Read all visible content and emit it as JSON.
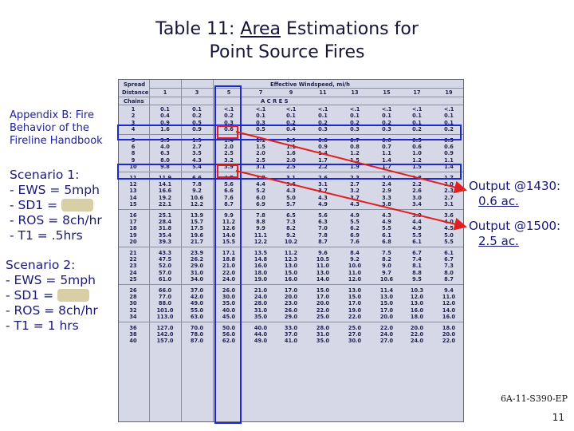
{
  "title": {
    "prefix": "Table 11:  ",
    "underlined": "Area",
    "suffix": " Estimations for",
    "line2": "Point Source Fires"
  },
  "appendix": {
    "line1": "Appendix B: Fire",
    "line2": "Behavior of the",
    "line3": "Fireline Handbook"
  },
  "scenario1": {
    "heading": "Scenario 1:",
    "ews": " - EWS = 5mph",
    "sd1": " - SD1 =",
    "ros": " - ROS = 8ch/hr",
    "t1": " - T1 = .5hrs"
  },
  "scenario2": {
    "heading": "Scenario 2:",
    "ews": " - EWS = 5mph",
    "sd1": " - SD1 =",
    "ros": " - ROS = 8ch/hr",
    "t1": " - T1 = 1 hrs"
  },
  "outputs": [
    {
      "label": "Output @1430:",
      "value": "0.6  ac."
    },
    {
      "label": "Output @1500:",
      "value": "2.5  ac."
    }
  ],
  "footer": "6A-11-S390-EP",
  "page_number": "11",
  "accent_colors": {
    "highlight_box": "#1a2ad0",
    "selected_cell": "#e02020",
    "arrow": "#e02020"
  },
  "table": {
    "header_line1": "Spread",
    "header_line2": "Distance",
    "header_line3": "Chains",
    "group_header": "Effective Windspeed, mi/h",
    "units_label": "A C R E S",
    "windspeeds": [
      "1",
      "3",
      "5",
      "7",
      "9",
      "11",
      "13",
      "15",
      "17",
      "19"
    ],
    "rows": [
      [
        "1",
        "0.1",
        "0.1",
        "<.1",
        "<.1",
        "<.1",
        "<.1",
        "<.1",
        "<.1",
        "<.1",
        "<.1"
      ],
      [
        "2",
        "0.4",
        "0.2",
        "0.2",
        "0.1",
        "0.1",
        "0.1",
        "0.1",
        "0.1",
        "0.1",
        "0.1"
      ],
      [
        "3",
        "0.9",
        "0.5",
        "0.3",
        "0.3",
        "0.2",
        "0.2",
        "0.2",
        "0.2",
        "0.1",
        "0.1"
      ],
      [
        "4",
        "1.6",
        "0.9",
        "0.6",
        "0.5",
        "0.4",
        "0.3",
        "0.3",
        "0.3",
        "0.2",
        "0.2"
      ],
      [
        "5",
        "3.5",
        "1.9",
        "1.4",
        "1.1",
        "0.9",
        "0.8",
        "0.7",
        "0.6",
        "0.5",
        "0.5"
      ],
      [
        "6",
        "4.0",
        "2.7",
        "2.0",
        "1.5",
        "1.1",
        "0.9",
        "0.8",
        "0.7",
        "0.6",
        "0.6"
      ],
      [
        "8",
        "6.3",
        "3.5",
        "2.5",
        "2.0",
        "1.6",
        "1.4",
        "1.2",
        "1.1",
        "1.0",
        "0.9"
      ],
      [
        "9",
        "8.0",
        "4.3",
        "3.2",
        "2.5",
        "2.0",
        "1.7",
        "1.5",
        "1.4",
        "1.2",
        "1.1"
      ],
      [
        "10",
        "9.8",
        "5.4",
        "3.9",
        "3.1",
        "2.5",
        "2.2",
        "1.9",
        "1.7",
        "1.5",
        "1.4"
      ],
      [
        "11",
        "11.9",
        "6.6",
        "4.7",
        "3.7",
        "3.1",
        "2.6",
        "2.3",
        "2.0",
        "1.8",
        "1.7"
      ],
      [
        "12",
        "14.1",
        "7.8",
        "5.6",
        "4.4",
        "3.6",
        "3.1",
        "2.7",
        "2.4",
        "2.2",
        "2.0"
      ],
      [
        "13",
        "16.6",
        "9.2",
        "6.6",
        "5.2",
        "4.3",
        "3.7",
        "3.2",
        "2.9",
        "2.6",
        "2.3"
      ],
      [
        "14",
        "19.2",
        "10.6",
        "7.6",
        "6.0",
        "5.0",
        "4.3",
        "3.7",
        "3.3",
        "3.0",
        "2.7"
      ],
      [
        "15",
        "22.1",
        "12.2",
        "8.7",
        "6.9",
        "5.7",
        "4.9",
        "4.3",
        "3.8",
        "3.4",
        "3.1"
      ],
      [
        "16",
        "25.1",
        "13.9",
        "9.9",
        "7.8",
        "6.5",
        "5.6",
        "4.9",
        "4.3",
        "3.9",
        "3.6"
      ],
      [
        "17",
        "28.4",
        "15.7",
        "11.2",
        "8.8",
        "7.3",
        "6.3",
        "5.5",
        "4.9",
        "4.4",
        "4.0"
      ],
      [
        "18",
        "31.8",
        "17.5",
        "12.6",
        "9.9",
        "8.2",
        "7.0",
        "6.2",
        "5.5",
        "4.9",
        "4.5"
      ],
      [
        "19",
        "35.4",
        "19.6",
        "14.0",
        "11.1",
        "9.2",
        "7.8",
        "6.9",
        "6.1",
        "5.5",
        "5.0"
      ],
      [
        "20",
        "39.3",
        "21.7",
        "15.5",
        "12.2",
        "10.2",
        "8.7",
        "7.6",
        "6.8",
        "6.1",
        "5.5"
      ],
      [
        "21",
        "43.3",
        "23.9",
        "17.1",
        "13.5",
        "11.2",
        "9.6",
        "8.4",
        "7.5",
        "6.7",
        "6.1"
      ],
      [
        "22",
        "47.5",
        "26.2",
        "18.8",
        "14.8",
        "12.3",
        "10.5",
        "9.2",
        "8.2",
        "7.4",
        "6.7"
      ],
      [
        "23",
        "52.0",
        "29.0",
        "21.0",
        "16.0",
        "13.0",
        "11.0",
        "10.0",
        "9.0",
        "8.1",
        "7.3"
      ],
      [
        "24",
        "57.0",
        "31.0",
        "22.0",
        "18.0",
        "15.0",
        "13.0",
        "11.0",
        "9.7",
        "8.8",
        "8.0"
      ],
      [
        "25",
        "61.0",
        "34.0",
        "24.0",
        "19.0",
        "16.0",
        "14.0",
        "12.0",
        "10.6",
        "9.5",
        "8.7"
      ],
      [
        "26",
        "66.0",
        "37.0",
        "26.0",
        "21.0",
        "17.0",
        "15.0",
        "13.0",
        "11.4",
        "10.3",
        "9.4"
      ],
      [
        "28",
        "77.0",
        "42.0",
        "30.0",
        "24.0",
        "20.0",
        "17.0",
        "15.0",
        "13.0",
        "12.0",
        "11.0"
      ],
      [
        "30",
        "88.0",
        "49.0",
        "35.0",
        "28.0",
        "23.0",
        "20.0",
        "17.0",
        "15.0",
        "13.0",
        "12.0"
      ],
      [
        "32",
        "101.0",
        "55.0",
        "40.0",
        "31.0",
        "26.0",
        "22.0",
        "19.0",
        "17.0",
        "16.0",
        "14.0"
      ],
      [
        "34",
        "113.0",
        "63.0",
        "45.0",
        "35.0",
        "29.0",
        "25.0",
        "22.0",
        "20.0",
        "18.0",
        "16.0"
      ],
      [
        "36",
        "127.0",
        "70.0",
        "50.0",
        "40.0",
        "33.0",
        "28.0",
        "25.0",
        "22.0",
        "20.0",
        "18.0"
      ],
      [
        "38",
        "142.0",
        "78.0",
        "56.0",
        "44.0",
        "37.0",
        "31.0",
        "27.0",
        "24.0",
        "22.0",
        "20.0"
      ],
      [
        "40",
        "157.0",
        "87.0",
        "62.0",
        "49.0",
        "41.0",
        "35.0",
        "30.0",
        "27.0",
        "24.0",
        "22.0"
      ]
    ]
  }
}
